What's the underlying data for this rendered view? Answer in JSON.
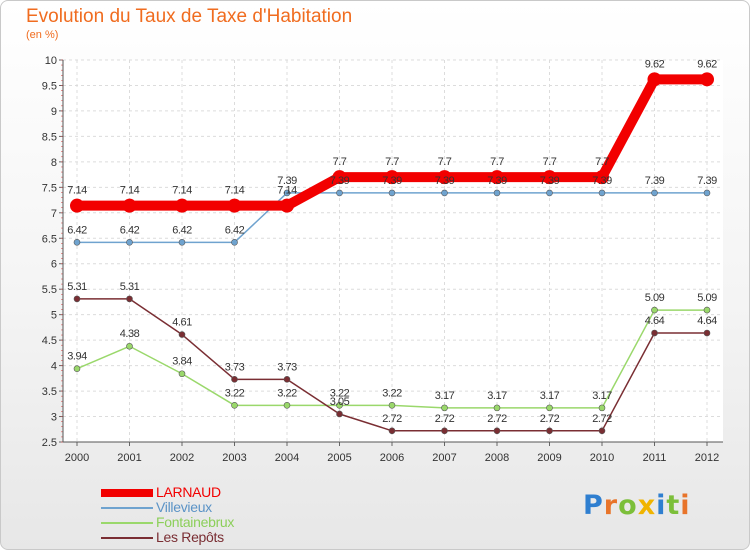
{
  "title": "Evolution du Taux de Taxe d'Habitation",
  "subtitle": "(en %)",
  "logo": {
    "text": "Proxiti",
    "letters": [
      "P",
      "r",
      "o",
      "x",
      "i",
      "t",
      "i"
    ],
    "colors": [
      "#2f7fd0",
      "#e8742a",
      "#7cbf3a",
      "#f0b400",
      "#2f7fd0",
      "#7cbf3a",
      "#e8742a"
    ]
  },
  "chart_data": {
    "type": "line",
    "title": "Evolution du Taux de Taxe d'Habitation",
    "ylabel": "(en %)",
    "xlabel": "",
    "ylim": [
      2.5,
      10
    ],
    "yticks": [
      "2.5",
      "3",
      "3.5",
      "4",
      "4.5",
      "5",
      "5.5",
      "6",
      "6.5",
      "7",
      "7.5",
      "8",
      "8.5",
      "9",
      "9.5",
      "10"
    ],
    "grid": true,
    "legend_position": "bottom-left",
    "categories": [
      "2000",
      "2001",
      "2002",
      "2003",
      "2004",
      "2005",
      "2006",
      "2007",
      "2008",
      "2009",
      "2010",
      "2011",
      "2012"
    ],
    "series": [
      {
        "name": "Villevieux",
        "color": "#6fa3cf",
        "values": [
          6.42,
          6.42,
          6.42,
          6.42,
          7.39,
          7.39,
          7.39,
          7.39,
          7.39,
          7.39,
          7.39,
          7.39,
          7.39
        ],
        "labels": [
          "6.42",
          "6.42",
          "6.42",
          "6.42",
          "7.39",
          "7.39",
          "7.39",
          "7.39",
          "7.39",
          "7.39",
          "7.39",
          "7.39",
          "7.39"
        ]
      },
      {
        "name": "Fontainebrux",
        "color": "#9ad86b",
        "values": [
          3.94,
          4.38,
          3.84,
          3.22,
          3.22,
          3.22,
          3.22,
          3.17,
          3.17,
          3.17,
          3.17,
          5.09,
          5.09
        ],
        "labels": [
          "3.94",
          "4.38",
          "3.84",
          "3.22",
          "3.22",
          "3.22",
          "3.22",
          "3.17",
          "3.17",
          "3.17",
          "3.17",
          "5.09",
          "5.09"
        ]
      },
      {
        "name": "Les Repôts",
        "color": "#7a2e33",
        "values": [
          5.31,
          5.31,
          4.61,
          3.73,
          3.73,
          3.05,
          2.72,
          2.72,
          2.72,
          2.72,
          2.72,
          4.64,
          4.64
        ],
        "labels": [
          "5.31",
          "5.31",
          "4.61",
          "3.73",
          "3.73",
          "3.05",
          "2.72",
          "2.72",
          "2.72",
          "2.72",
          "2.72",
          "4.64",
          "4.64"
        ]
      },
      {
        "name": "LARNAUD",
        "color": "#f20000",
        "values": [
          7.14,
          7.14,
          7.14,
          7.14,
          7.14,
          7.7,
          7.7,
          7.7,
          7.7,
          7.7,
          7.7,
          9.62,
          9.62
        ],
        "labels": [
          "7.14",
          "7.14",
          "7.14",
          "7.14",
          "7.14",
          "7.7",
          "7.7",
          "7.7",
          "7.7",
          "7.7",
          "7.7",
          "9.62",
          "9.62"
        ]
      }
    ],
    "legend": [
      "LARNAUD",
      "Villevieux",
      "Fontainebrux",
      "Les Repôts"
    ]
  }
}
